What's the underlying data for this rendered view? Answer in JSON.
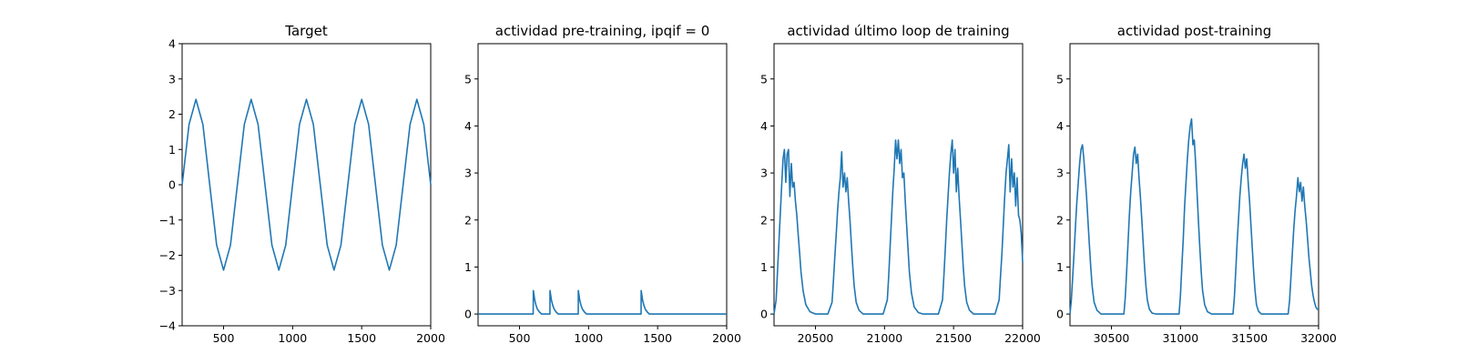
{
  "figure": {
    "background": "#ffffff",
    "line_color": "#1f77b4"
  },
  "chart_data": [
    {
      "type": "line",
      "title": "Target",
      "xlabel": "",
      "ylabel": "",
      "xlim": [
        200,
        2000
      ],
      "ylim": [
        -4,
        4
      ],
      "xticks": [
        500,
        1000,
        1500,
        2000
      ],
      "xtick_labels": [
        "500",
        "1000",
        "1500",
        "2000"
      ],
      "yticks": [
        -4,
        -3,
        -2,
        -1,
        0,
        1,
        2,
        3,
        4
      ],
      "ytick_labels": [
        "−4",
        "−3",
        "−2",
        "−1",
        "0",
        "1",
        "2",
        "3",
        "4"
      ],
      "grid": false,
      "series": [
        {
          "x": [
            200,
            250,
            300,
            350,
            400,
            450,
            500,
            550,
            600,
            650,
            700,
            750,
            800,
            850,
            900,
            950,
            1000,
            1050,
            1100,
            1150,
            1200,
            1250,
            1300,
            1350,
            1400,
            1450,
            1500,
            1550,
            1600,
            1650,
            1700,
            1750,
            1800,
            1850,
            1900,
            1950,
            2000
          ],
          "y": [
            0.0,
            1.71,
            2.42,
            1.71,
            0.0,
            -1.71,
            -2.42,
            -1.71,
            0.0,
            1.71,
            2.42,
            1.71,
            0.0,
            -1.71,
            -2.42,
            -1.71,
            0.0,
            1.71,
            2.42,
            1.71,
            0.0,
            -1.71,
            -2.42,
            -1.71,
            0.0,
            1.71,
            2.42,
            1.71,
            0.0,
            -1.71,
            -2.42,
            -1.71,
            0.0,
            1.71,
            2.42,
            1.71,
            0.0
          ]
        }
      ]
    },
    {
      "type": "line",
      "title": "actividad pre-training, ipqif = 0",
      "xlabel": "",
      "ylabel": "",
      "xlim": [
        200,
        2000
      ],
      "ylim": [
        -0.25,
        5.75
      ],
      "xticks": [
        500,
        1000,
        1500,
        2000
      ],
      "xtick_labels": [
        "500",
        "1000",
        "1500",
        "2000"
      ],
      "yticks": [
        0,
        1,
        2,
        3,
        4,
        5
      ],
      "ytick_labels": [
        "0",
        "1",
        "2",
        "3",
        "4",
        "5"
      ],
      "grid": false,
      "series": [
        {
          "x": [
            200,
            599,
            600,
            610,
            620,
            630,
            645,
            660,
            720,
            721,
            731,
            741,
            751,
            766,
            781,
            925,
            926,
            936,
            946,
            956,
            971,
            986,
            1380,
            1381,
            1391,
            1401,
            1411,
            1426,
            1441,
            2000
          ],
          "y": [
            0.0,
            0.0,
            0.5,
            0.3,
            0.18,
            0.1,
            0.04,
            0.0,
            0.0,
            0.5,
            0.3,
            0.18,
            0.1,
            0.04,
            0.0,
            0.0,
            0.5,
            0.3,
            0.18,
            0.1,
            0.04,
            0.0,
            0.0,
            0.5,
            0.3,
            0.18,
            0.1,
            0.04,
            0.0,
            0.0
          ]
        }
      ]
    },
    {
      "type": "line",
      "title": "actividad último loop de training",
      "xlabel": "",
      "ylabel": "",
      "xlim": [
        20200,
        22000
      ],
      "ylim": [
        -0.25,
        5.75
      ],
      "xticks": [
        20500,
        21000,
        21500,
        22000
      ],
      "xtick_labels": [
        "20500",
        "21000",
        "21500",
        "22000"
      ],
      "yticks": [
        0,
        1,
        2,
        3,
        4,
        5
      ],
      "ytick_labels": [
        "0",
        "1",
        "2",
        "3",
        "4",
        "5"
      ],
      "grid": false,
      "series": [
        {
          "x": [
            20200,
            20215,
            20225,
            20235,
            20245,
            20255,
            20265,
            20275,
            20285,
            20295,
            20305,
            20315,
            20325,
            20335,
            20345,
            20355,
            20365,
            20375,
            20385,
            20395,
            20410,
            20430,
            20460,
            20500,
            20590,
            20620,
            20630,
            20640,
            20650,
            20660,
            20670,
            20680,
            20690,
            20700,
            20710,
            20720,
            20730,
            20740,
            20750,
            20760,
            20770,
            20780,
            20795,
            20815,
            20845,
            20880,
            20990,
            21020,
            21030,
            21040,
            21050,
            21060,
            21070,
            21080,
            21090,
            21100,
            21110,
            21120,
            21130,
            21140,
            21150,
            21160,
            21170,
            21180,
            21195,
            21215,
            21245,
            21280,
            21390,
            21420,
            21430,
            21440,
            21450,
            21460,
            21470,
            21480,
            21490,
            21500,
            21510,
            21520,
            21530,
            21540,
            21550,
            21560,
            21570,
            21580,
            21595,
            21615,
            21645,
            21680,
            21800,
            21830,
            21840,
            21850,
            21860,
            21870,
            21880,
            21890,
            21900,
            21910,
            21920,
            21930,
            21940,
            21950,
            21960,
            21970,
            21980,
            21990,
            22000
          ],
          "y": [
            0.0,
            0.3,
            0.9,
            1.5,
            2.1,
            2.7,
            3.3,
            3.5,
            2.8,
            3.4,
            3.5,
            2.5,
            3.2,
            2.7,
            2.8,
            2.4,
            2.1,
            1.7,
            1.3,
            0.9,
            0.5,
            0.2,
            0.05,
            0.0,
            0.0,
            0.25,
            0.7,
            1.2,
            1.7,
            2.2,
            2.6,
            2.9,
            3.45,
            2.7,
            3.0,
            2.6,
            2.9,
            2.4,
            2.0,
            1.5,
            1.0,
            0.6,
            0.25,
            0.08,
            0.0,
            0.0,
            0.0,
            0.3,
            0.8,
            1.4,
            2.0,
            2.6,
            3.1,
            3.7,
            3.3,
            3.7,
            3.2,
            3.5,
            2.9,
            3.0,
            2.4,
            1.9,
            1.4,
            0.9,
            0.45,
            0.15,
            0.03,
            0.0,
            0.0,
            0.3,
            0.8,
            1.4,
            2.0,
            2.5,
            3.0,
            3.4,
            3.7,
            3.0,
            3.5,
            2.6,
            3.1,
            2.5,
            2.0,
            1.5,
            1.0,
            0.6,
            0.25,
            0.08,
            0.0,
            0.0,
            0.0,
            0.3,
            0.8,
            1.3,
            1.9,
            2.5,
            3.0,
            3.3,
            3.6,
            2.6,
            3.3,
            2.7,
            3.0,
            2.3,
            2.9,
            2.1,
            2.0,
            1.7,
            1.1
          ]
        }
      ]
    },
    {
      "type": "line",
      "title": "actividad post-training",
      "xlabel": "",
      "ylabel": "",
      "xlim": [
        30200,
        32000
      ],
      "ylim": [
        -0.25,
        5.75
      ],
      "xticks": [
        30500,
        31000,
        31500,
        32000
      ],
      "xtick_labels": [
        "30500",
        "31000",
        "31500",
        "32000"
      ],
      "yticks": [
        0,
        1,
        2,
        3,
        4,
        5
      ],
      "ytick_labels": [
        "0",
        "1",
        "2",
        "3",
        "4",
        "5"
      ],
      "grid": false,
      "series": [
        {
          "x": [
            30200,
            30210,
            30220,
            30230,
            30240,
            30250,
            30260,
            30270,
            30280,
            30290,
            30300,
            30310,
            30320,
            30330,
            30340,
            30350,
            30360,
            30375,
            30395,
            30425,
            30460,
            30590,
            30600,
            30610,
            30620,
            30630,
            30640,
            30650,
            30660,
            30670,
            30680,
            30690,
            30700,
            30710,
            30720,
            30730,
            30740,
            30750,
            30760,
            30775,
            30795,
            30825,
            30860,
            30990,
            31000,
            31010,
            31020,
            31030,
            31040,
            31050,
            31060,
            31070,
            31080,
            31090,
            31100,
            31110,
            31120,
            31130,
            31140,
            31150,
            31160,
            31175,
            31195,
            31225,
            31260,
            31380,
            31390,
            31400,
            31410,
            31420,
            31430,
            31440,
            31450,
            31460,
            31470,
            31480,
            31490,
            31500,
            31510,
            31520,
            31530,
            31540,
            31550,
            31565,
            31585,
            31615,
            31650,
            31780,
            31790,
            31800,
            31810,
            31820,
            31830,
            31840,
            31850,
            31860,
            31870,
            31880,
            31890,
            31900,
            31910,
            31920,
            31930,
            31940,
            31950,
            31960,
            31970,
            31980,
            31990,
            32000
          ],
          "y": [
            0.0,
            0.3,
            0.8,
            1.3,
            1.9,
            2.4,
            2.8,
            3.2,
            3.5,
            3.6,
            3.3,
            2.9,
            2.5,
            2.0,
            1.5,
            1.0,
            0.6,
            0.25,
            0.08,
            0.0,
            0.0,
            0.0,
            0.35,
            0.9,
            1.5,
            2.1,
            2.6,
            3.0,
            3.4,
            3.55,
            3.2,
            3.4,
            2.9,
            2.5,
            2.0,
            1.5,
            1.0,
            0.6,
            0.3,
            0.1,
            0.02,
            0.0,
            0.0,
            0.0,
            0.4,
            1.0,
            1.6,
            2.3,
            2.8,
            3.3,
            3.7,
            4.0,
            4.15,
            3.6,
            3.7,
            3.2,
            2.6,
            2.0,
            1.4,
            0.9,
            0.5,
            0.2,
            0.05,
            0.0,
            0.0,
            0.0,
            0.35,
            0.9,
            1.5,
            2.0,
            2.5,
            2.9,
            3.2,
            3.4,
            3.1,
            3.3,
            2.8,
            2.4,
            1.9,
            1.4,
            0.9,
            0.5,
            0.2,
            0.06,
            0.0,
            0.0,
            0.0,
            0.0,
            0.3,
            0.8,
            1.3,
            1.8,
            2.2,
            2.5,
            2.9,
            2.6,
            2.8,
            2.4,
            2.7,
            2.3,
            2.0,
            1.6,
            1.2,
            0.9,
            0.6,
            0.4,
            0.25,
            0.15,
            0.1,
            0.1
          ]
        }
      ]
    }
  ]
}
